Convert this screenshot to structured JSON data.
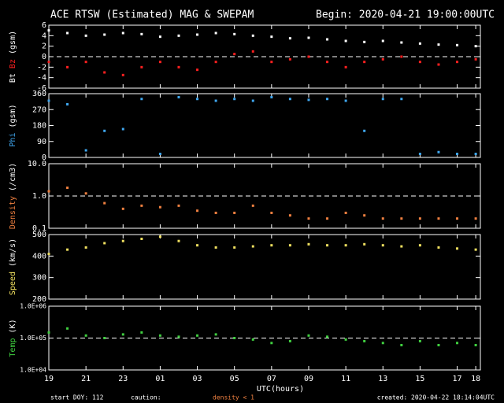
{
  "header": {
    "title": "ACE RTSW (Estimated) MAG & SWEPAM",
    "begin": "Begin: 2020-04-21 19:00:00UTC"
  },
  "footer": {
    "start_doy": "start DOY: 112",
    "caution": "caution:",
    "caution_note": "density < 1",
    "created": "created: 2020-04-22 18:14:04UTC"
  },
  "chart_data": [
    {
      "type": "scatter",
      "ylabel": "(gsm)",
      "ylim": [
        -6,
        6
      ],
      "yticks": [
        6,
        4,
        2,
        0,
        -2,
        -4,
        -6
      ],
      "refline": 0,
      "x": [
        0,
        1,
        2,
        3,
        4,
        5,
        6,
        7,
        8,
        9,
        10,
        11,
        12,
        13,
        14,
        15,
        16,
        17,
        18,
        19,
        20,
        21,
        22,
        23
      ],
      "series": [
        {
          "name": "Bt",
          "color": "#ffffff",
          "values": [
            5,
            4.5,
            4,
            4.2,
            4.5,
            4.3,
            3.8,
            4,
            4.2,
            4.5,
            4.3,
            4,
            3.8,
            3.5,
            3.6,
            3.3,
            3,
            2.8,
            3,
            2.7,
            2.5,
            2.3,
            2.2,
            2
          ]
        },
        {
          "name": "Bz",
          "color": "#ff2020",
          "values": [
            -1,
            -2,
            -1,
            -3,
            -3.5,
            -2,
            -1,
            -2,
            -2.5,
            -1,
            0.5,
            1,
            -1,
            -0.5,
            0,
            -1,
            -2,
            -1,
            -0.5,
            0,
            -1,
            -1.5,
            -1,
            -0.5
          ]
        }
      ]
    },
    {
      "type": "scatter",
      "ylabel": "(gsm)",
      "ylim": [
        0,
        360
      ],
      "yticks": [
        360,
        270,
        180,
        90,
        0
      ],
      "x": [
        0,
        1,
        2,
        3,
        4,
        5,
        6,
        7,
        8,
        9,
        10,
        11,
        12,
        13,
        14,
        15,
        16,
        17,
        18,
        19,
        20,
        21,
        22,
        23
      ],
      "series": [
        {
          "name": "Phi",
          "color": "#3fa7f0",
          "values": [
            320,
            300,
            40,
            150,
            160,
            330,
            20,
            340,
            330,
            320,
            330,
            320,
            340,
            330,
            325,
            330,
            320,
            150,
            330,
            330,
            20,
            30,
            20,
            20
          ]
        }
      ]
    },
    {
      "type": "scatter",
      "ylabel": "(/cm3)",
      "log": true,
      "ylim": [
        0.1,
        10
      ],
      "yticks": [
        {
          "value": 10,
          "label": "10.0"
        },
        {
          "value": 1,
          "label": "1.0"
        },
        0.1
      ],
      "refline": 1,
      "x": [
        0,
        1,
        2,
        3,
        4,
        5,
        6,
        7,
        8,
        9,
        10,
        11,
        12,
        13,
        14,
        15,
        16,
        17,
        18,
        19,
        20,
        21,
        22,
        23
      ],
      "series": [
        {
          "name": "Density",
          "color": "#f08040",
          "values": [
            1.4,
            1.8,
            1.2,
            0.6,
            0.4,
            0.5,
            0.45,
            0.5,
            0.35,
            0.3,
            0.3,
            0.5,
            0.3,
            0.25,
            0.2,
            0.2,
            0.3,
            0.25,
            0.2,
            0.2,
            0.2,
            0.2,
            0.2,
            0.2
          ]
        }
      ]
    },
    {
      "type": "scatter",
      "ylabel": "(km/s)",
      "ylim": [
        200,
        500
      ],
      "yticks": [
        500,
        400,
        300,
        200
      ],
      "x": [
        0,
        1,
        2,
        3,
        4,
        5,
        6,
        7,
        8,
        9,
        10,
        11,
        12,
        13,
        14,
        15,
        16,
        17,
        18,
        19,
        20,
        21,
        22,
        23
      ],
      "series": [
        {
          "name": "Speed",
          "color": "#f0e060",
          "values": [
            410,
            430,
            440,
            460,
            470,
            480,
            490,
            470,
            450,
            440,
            440,
            445,
            450,
            450,
            455,
            450,
            450,
            455,
            450,
            445,
            450,
            440,
            435,
            430
          ]
        }
      ]
    },
    {
      "type": "scatter",
      "ylabel": "(K)",
      "log": true,
      "ylim": [
        10000,
        1000000
      ],
      "refline": 100000,
      "yticks": [
        {
          "value": 1000000,
          "label": "1.0E+06"
        },
        {
          "value": 100000,
          "label": "1.0E+05"
        },
        {
          "value": 10000,
          "label": "1.0E+04"
        }
      ],
      "x": [
        0,
        1,
        2,
        3,
        4,
        5,
        6,
        7,
        8,
        9,
        10,
        11,
        12,
        13,
        14,
        15,
        16,
        17,
        18,
        19,
        20,
        21,
        22,
        23
      ],
      "series": [
        {
          "name": "Temp",
          "color": "#40d040",
          "values": [
            150000,
            200000,
            120000,
            100000,
            130000,
            150000,
            120000,
            110000,
            120000,
            130000,
            100000,
            90000,
            70000,
            80000,
            120000,
            110000,
            90000,
            80000,
            70000,
            60000,
            80000,
            60000,
            70000,
            60000
          ]
        }
      ],
      "xlabel": "UTC(hours)",
      "xlim": [
        0,
        23.25
      ],
      "xticks": [
        {
          "value": 0,
          "label": "19"
        },
        {
          "value": 2,
          "label": "21"
        },
        {
          "value": 4,
          "label": "23"
        },
        {
          "value": 6,
          "label": "01"
        },
        {
          "value": 8,
          "label": "03"
        },
        {
          "value": 10,
          "label": "05"
        },
        {
          "value": 12,
          "label": "07"
        },
        {
          "value": 14,
          "label": "09"
        },
        {
          "value": 16,
          "label": "11"
        },
        {
          "value": 18,
          "label": "13"
        },
        {
          "value": 20,
          "label": "15"
        },
        {
          "value": 22,
          "label": "17"
        },
        {
          "value": 23,
          "label": "18"
        }
      ]
    }
  ]
}
